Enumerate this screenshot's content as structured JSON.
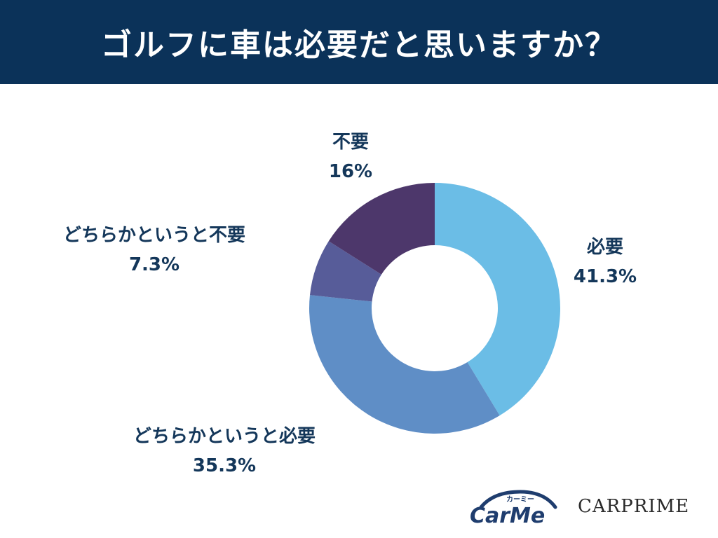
{
  "header": {
    "title": "ゴルフに車は必要だと思いますか？"
  },
  "chart_data": {
    "type": "pie",
    "donut": true,
    "title": "ゴルフに車は必要だと思いますか？",
    "slices": [
      {
        "label": "必要",
        "value": 41.3,
        "display": "41.3%",
        "color": "#6bbde6"
      },
      {
        "label": "どちらかというと必要",
        "value": 35.3,
        "display": "35.3%",
        "color": "#5f8ec6"
      },
      {
        "label": "どちらかというと不要",
        "value": 7.3,
        "display": "7.3%",
        "color": "#575c99"
      },
      {
        "label": "不要",
        "value": 16,
        "display": "16%",
        "color": "#4d376b"
      }
    ]
  },
  "logos": {
    "carme_text": "CarMe",
    "carme_kana": "カーミー",
    "carprime": "CARPRIME"
  },
  "colors": {
    "header_bg": "#0b3259",
    "label_text": "#14375a",
    "carme_blue": "#1f3d6e"
  }
}
